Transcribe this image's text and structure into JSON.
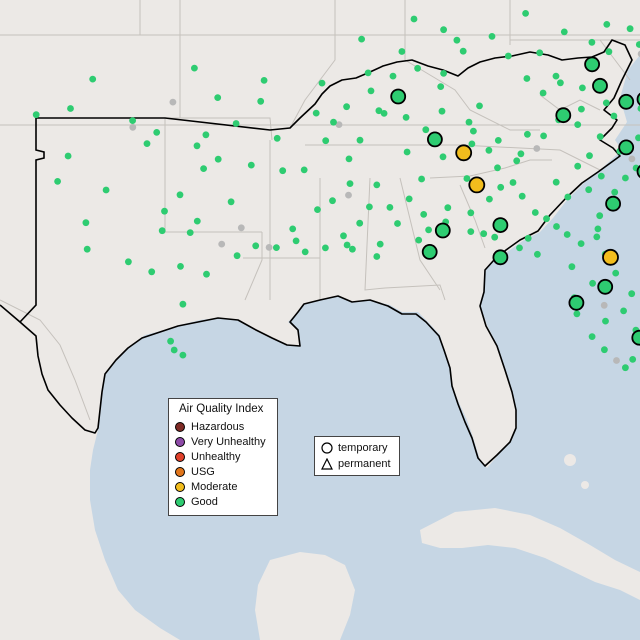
{
  "map": {
    "basemap": "Terrain basemap of the southeastern United States with state boundaries, Gulf of Mexico and Cuba",
    "colors": {
      "land": "#ece9e6",
      "water": "#c6d6e4",
      "state_border": "#c5c1bc",
      "region_outline": "#000000"
    }
  },
  "legend": {
    "title": "Air Quality Index",
    "categories": [
      {
        "label": "Hazardous",
        "color": "#7e2b25"
      },
      {
        "label": "Very Unhealthy",
        "color": "#8e4ba8"
      },
      {
        "label": "Unhealthy",
        "color": "#e0402b"
      },
      {
        "label": "USG",
        "color": "#e2761b"
      },
      {
        "label": "Moderate",
        "color": "#f2bd1d"
      },
      {
        "label": "Good",
        "color": "#2ecc71"
      }
    ],
    "site_types": [
      {
        "label": "temporary",
        "shape": "circle"
      },
      {
        "label": "permanent",
        "shape": "triangle"
      }
    ]
  },
  "monitors": {
    "temporary_good": [
      [
        29.8,
        -88.1
      ],
      [
        30.6,
        -87.6
      ],
      [
        30.8,
        -85.4
      ],
      [
        35.4,
        -80.6
      ],
      [
        36.8,
        -81.9
      ],
      [
        35.5,
        -79.9
      ],
      [
        34.3,
        -76.9
      ],
      [
        31.6,
        -81.1
      ],
      [
        36.0,
        -81.6
      ],
      [
        35.6,
        -89.3
      ],
      [
        34.9,
        -83.0
      ],
      [
        33.7,
        -80.6
      ],
      [
        26.6,
        -80.1
      ],
      [
        29.6,
        -85.4
      ],
      [
        32.8,
        -79.9
      ],
      [
        27.9,
        -82.5
      ],
      [
        28.5,
        -81.4
      ],
      [
        34.0,
        -87.9
      ]
    ],
    "temporary_moderate": [
      [
        33.5,
        -86.8
      ],
      [
        32.3,
        -86.3
      ],
      [
        29.6,
        -81.2
      ]
    ],
    "permanent_good": [
      [
        33.84,
        -98.89
      ],
      [
        29.26,
        -97.61
      ],
      [
        26.14,
        -97.85
      ],
      [
        33.26,
        -96.17
      ],
      [
        32.91,
        -96.73
      ],
      [
        33.76,
        -96.98
      ],
      [
        30.52,
        -97.24
      ],
      [
        29.06,
        -98.71
      ],
      [
        32.83,
        -93.71
      ],
      [
        33.27,
        -91.18
      ],
      [
        34.97,
        -89.84
      ],
      [
        31.71,
        -91.81
      ],
      [
        30.06,
        -91.25
      ],
      [
        30.4,
        -91.39
      ],
      [
        30.09,
        -89.99
      ],
      [
        29.9,
        -91.05
      ],
      [
        31.2,
        -88.33
      ],
      [
        32.3,
        -90.12
      ],
      [
        33.46,
        -84.62
      ],
      [
        33.2,
        -84.78
      ],
      [
        34.13,
        -83.75
      ],
      [
        31.27,
        -84.07
      ],
      [
        32.12,
        -82.03
      ],
      [
        30.66,
        -81.68
      ],
      [
        28.63,
        -81.88
      ],
      [
        28.24,
        -80.39
      ],
      [
        27.22,
        -81.39
      ],
      [
        26.15,
        -81.43
      ],
      [
        30.31,
        -84.34
      ],
      [
        30.48,
        -86.04
      ],
      [
        32.54,
        -86.68
      ],
      [
        33.59,
        -85.84
      ],
      [
        33.83,
        -86.49
      ],
      [
        34.64,
        -86.6
      ],
      [
        35.97,
        -87.68
      ],
      [
        35.25,
        -86.2
      ],
      [
        36.27,
        -84.39
      ],
      [
        36.36,
        -83.28
      ],
      [
        34.87,
        -81.07
      ],
      [
        35.15,
        -80.04
      ],
      [
        35.8,
        -78.29
      ],
      [
        36.12,
        -77.58
      ],
      [
        36.4,
        -76.38
      ],
      [
        37.44,
        -76.7
      ],
      [
        38.01,
        -77.09
      ],
      [
        37.35,
        -78.92
      ],
      [
        38.51,
        -79.5
      ],
      [
        37.54,
        -80.1
      ],
      [
        37.27,
        -81.26
      ],
      [
        38.29,
        -81.34
      ],
      [
        38.7,
        -84.44
      ],
      [
        37.11,
        -85.1
      ],
      [
        37.29,
        -86.82
      ],
      [
        36.65,
        -88.56
      ],
      [
        38.49,
        -88.7
      ],
      [
        36.48,
        -90.45
      ],
      [
        34.04,
        -93.92
      ],
      [
        34.59,
        -95.49
      ],
      [
        35.56,
        -96.19
      ],
      [
        36.66,
        -97.08
      ],
      [
        36.2,
        -94.42
      ],
      [
        35.42,
        -94.55
      ],
      [
        34.98,
        -92.43
      ],
      [
        33.97,
        -90.76
      ],
      [
        36.1,
        -92.21
      ],
      [
        33.04,
        -94.91
      ],
      [
        31.67,
        -95.68
      ],
      [
        30.95,
        -96.97
      ],
      [
        31.93,
        -97.63
      ],
      [
        34.26,
        -98.52
      ],
      [
        34.17,
        -96.64
      ],
      [
        30.03,
        -94.74
      ],
      [
        29.66,
        -95.45
      ],
      [
        28.97,
        -96.62
      ],
      [
        27.85,
        -97.52
      ],
      [
        26.47,
        -97.99
      ],
      [
        25.95,
        -97.52
      ],
      [
        29.43,
        -99.6
      ],
      [
        30.89,
        -101.22
      ],
      [
        33.38,
        -101.9
      ],
      [
        32.43,
        -102.3
      ],
      [
        34.7,
        -99.44
      ],
      [
        36.25,
        -100.96
      ],
      [
        35.15,
        -101.81
      ],
      [
        34.92,
        -103.12
      ],
      [
        32.11,
        -100.45
      ],
      [
        29.9,
        -101.17
      ],
      [
        30.59,
        -98.31
      ],
      [
        31.32,
        -98.22
      ],
      [
        30.21,
        -93.2
      ],
      [
        29.95,
        -92.08
      ],
      [
        29.63,
        -90.12
      ],
      [
        30.24,
        -88.52
      ],
      [
        30.92,
        -87.49
      ],
      [
        30.56,
        -86.53
      ],
      [
        30.35,
        -85.62
      ],
      [
        29.71,
        -83.99
      ],
      [
        29.25,
        -82.67
      ],
      [
        28.09,
        -82.58
      ],
      [
        27.49,
        -82.48
      ],
      [
        26.64,
        -81.9
      ],
      [
        25.79,
        -80.35
      ],
      [
        25.48,
        -80.63
      ],
      [
        26.88,
        -80.23
      ],
      [
        27.6,
        -80.7
      ],
      [
        29.01,
        -81.0
      ],
      [
        29.72,
        -81.4
      ],
      [
        30.36,
        -81.72
      ],
      [
        31.15,
        -81.61
      ],
      [
        32.03,
        -81.04
      ],
      [
        32.56,
        -80.63
      ],
      [
        33.35,
        -79.22
      ],
      [
        33.89,
        -78.54
      ],
      [
        34.36,
        -77.64
      ],
      [
        34.74,
        -76.86
      ],
      [
        35.5,
        -75.99
      ],
      [
        36.11,
        -75.81
      ],
      [
        36.87,
        -76.34
      ],
      [
        37.17,
        -77.41
      ],
      [
        37.68,
        -77.42
      ],
      [
        38.75,
        -77.14
      ],
      [
        39.29,
        -76.61
      ],
      [
        38.13,
        -80.45
      ],
      [
        37.62,
        -81.91
      ],
      [
        38.01,
        -82.96
      ],
      [
        37.23,
        -83.9
      ],
      [
        37.84,
        -85.72
      ],
      [
        37.7,
        -87.06
      ],
      [
        38.09,
        -87.57
      ],
      [
        37.28,
        -89.16
      ],
      [
        37.74,
        -90.7
      ],
      [
        36.36,
        -89.5
      ],
      [
        35.07,
        -90.04
      ],
      [
        34.82,
        -89.0
      ],
      [
        34.36,
        -88.25
      ],
      [
        33.53,
        -88.96
      ],
      [
        33.35,
        -87.59
      ],
      [
        32.52,
        -88.41
      ],
      [
        31.78,
        -88.88
      ],
      [
        31.48,
        -90.4
      ],
      [
        31.46,
        -89.62
      ],
      [
        32.86,
        -92.89
      ],
      [
        33.95,
        -92.07
      ],
      [
        34.64,
        -91.77
      ],
      [
        35.22,
        -91.27
      ],
      [
        35.81,
        -90.34
      ],
      [
        36.46,
        -87.57
      ],
      [
        35.05,
        -87.63
      ],
      [
        34.31,
        -86.43
      ],
      [
        33.96,
        -85.48
      ],
      [
        32.94,
        -85.51
      ],
      [
        32.39,
        -84.92
      ],
      [
        31.88,
        -84.57
      ],
      [
        31.04,
        -83.64
      ],
      [
        32.4,
        -83.27
      ],
      [
        33.0,
        -82.45
      ],
      [
        33.39,
        -82.0
      ],
      [
        34.1,
        -81.59
      ],
      [
        34.55,
        -82.45
      ],
      [
        34.19,
        -84.37
      ],
      [
        34.73,
        -83.18
      ],
      [
        35.73,
        -83.77
      ],
      [
        35.92,
        -82.27
      ],
      [
        36.11,
        -83.11
      ],
      [
        35.36,
        -81.36
      ],
      [
        35.13,
        -82.31
      ],
      [
        34.06,
        -80.13
      ],
      [
        33.56,
        -80.84
      ],
      [
        32.93,
        -80.22
      ],
      [
        32.63,
        -81.55
      ],
      [
        31.85,
        -82.83
      ],
      [
        30.75,
        -83.26
      ],
      [
        30.11,
        -82.32
      ],
      [
        30.45,
        -82.85
      ],
      [
        29.95,
        -84.67
      ],
      [
        31.77,
        -85.82
      ],
      [
        31.26,
        -86.53
      ],
      [
        31.45,
        -87.41
      ],
      [
        30.62,
        -88.14
      ],
      [
        31.38,
        -92.38
      ],
      [
        29.96,
        -93.95
      ],
      [
        29.8,
        -92.85
      ],
      [
        30.66,
        -93.33
      ],
      [
        32.35,
        -91.14
      ],
      [
        30.87,
        -90.77
      ],
      [
        30.86,
        -89.33
      ],
      [
        32.21,
        -85.39
      ]
    ],
    "permanent_gray": [
      [
        34.55,
        -91.56
      ],
      [
        37.19,
        -80.03
      ],
      [
        33.27,
        -80.38
      ],
      [
        27.81,
        -81.44
      ],
      [
        26.47,
        -80.13
      ],
      [
        30.7,
        -95.29
      ],
      [
        31.92,
        -91.2
      ],
      [
        35.39,
        -97.9
      ],
      [
        34.45,
        -99.43
      ],
      [
        30.09,
        -96.04
      ],
      [
        33.66,
        -84.01
      ],
      [
        25.75,
        -80.97
      ],
      [
        32.99,
        -79.75
      ],
      [
        36.53,
        -76.53
      ],
      [
        29.97,
        -94.23
      ]
    ]
  }
}
